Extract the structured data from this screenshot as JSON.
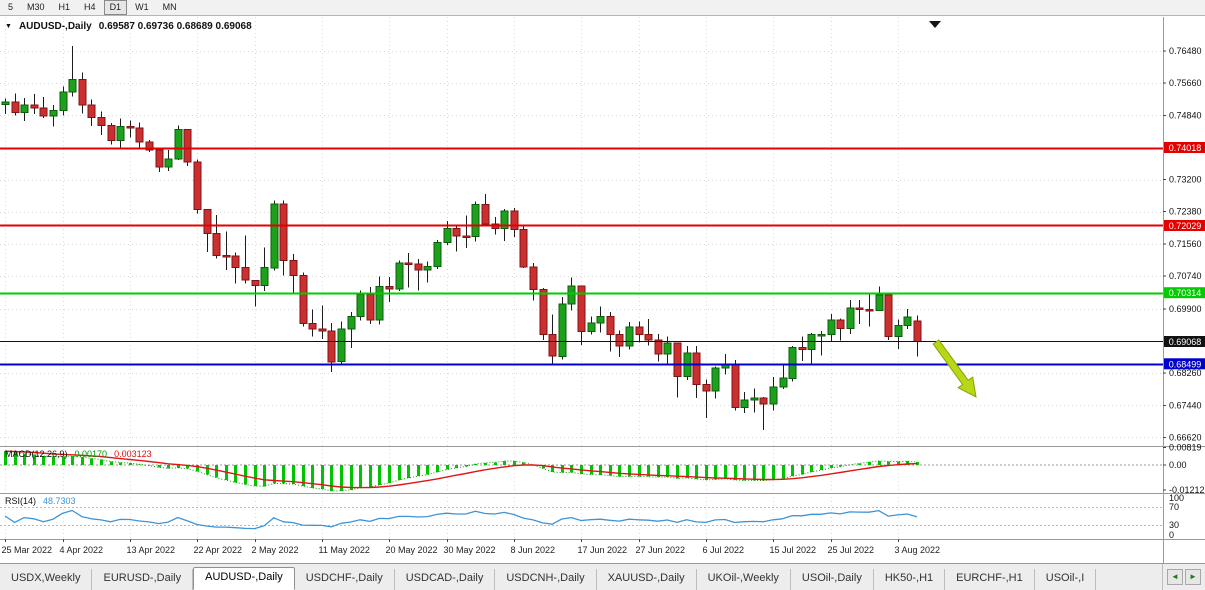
{
  "toolbar": {
    "timeframes": [
      "5",
      "M30",
      "H1",
      "H4",
      "D1",
      "W1",
      "MN"
    ],
    "active": "D1"
  },
  "title": {
    "symbol": "AUDUSD-,Daily",
    "ohlc": "0.69587 0.69736 0.68689 0.69068"
  },
  "chart_data": {
    "type": "candlestick",
    "symbol": "AUDUSD-,Daily",
    "ohlc_current": {
      "open": "0.69587",
      "high": "0.69736",
      "low": "0.68689",
      "close": "0.69068"
    },
    "ylim": [
      0.664,
      0.7735
    ],
    "y_ticks": [
      "0.76480",
      "0.75660",
      "0.74840",
      "0.73200",
      "0.72380",
      "0.71560",
      "0.70740",
      "0.69900",
      "0.68260",
      "0.67440",
      "0.66620"
    ],
    "x_labels": [
      {
        "t": "25 Mar 2022",
        "i": 0
      },
      {
        "t": "4 Apr 2022",
        "i": 6
      },
      {
        "t": "13 Apr 2022",
        "i": 13
      },
      {
        "t": "22 Apr 2022",
        "i": 20
      },
      {
        "t": "2 May 2022",
        "i": 26
      },
      {
        "t": "11 May 2022",
        "i": 33
      },
      {
        "t": "20 May 2022",
        "i": 40
      },
      {
        "t": "30 May 2022",
        "i": 46
      },
      {
        "t": "8 Jun 2022",
        "i": 53
      },
      {
        "t": "17 Jun 2022",
        "i": 60
      },
      {
        "t": "27 Jun 2022",
        "i": 66
      },
      {
        "t": "6 Jul 2022",
        "i": 73
      },
      {
        "t": "15 Jul 2022",
        "i": 80
      },
      {
        "t": "25 Jul 2022",
        "i": 86
      },
      {
        "t": "3 Aug 2022",
        "i": 93
      }
    ],
    "hlines": [
      {
        "price": 0.74018,
        "label": "0.74018",
        "color": "#e30000",
        "width": 2,
        "name": "resistance-line-upper"
      },
      {
        "price": 0.72029,
        "label": "0.72029",
        "color": "#e30000",
        "width": 2,
        "name": "resistance-line-lower"
      },
      {
        "price": 0.70314,
        "label": "0.70314",
        "color": "#00cc00",
        "width": 2,
        "name": "support-line-green"
      },
      {
        "price": 0.69068,
        "label": "0.69068",
        "color": "#111111",
        "width": 1,
        "name": "current-price-line"
      },
      {
        "price": 0.68499,
        "label": "0.68499",
        "color": "#0000cc",
        "width": 2,
        "name": "support-line-blue"
      }
    ],
    "candles": [
      [
        0.7512,
        0.7527,
        0.7487,
        0.7518
      ],
      [
        0.7518,
        0.754,
        0.7483,
        0.7491
      ],
      [
        0.7491,
        0.7528,
        0.747,
        0.751
      ],
      [
        0.751,
        0.7538,
        0.7487,
        0.7503
      ],
      [
        0.7503,
        0.7531,
        0.7477,
        0.7482
      ],
      [
        0.7482,
        0.751,
        0.7455,
        0.7496
      ],
      [
        0.7496,
        0.7557,
        0.7484,
        0.7543
      ],
      [
        0.7543,
        0.7661,
        0.7532,
        0.7575
      ],
      [
        0.7575,
        0.7593,
        0.7489,
        0.751
      ],
      [
        0.751,
        0.7524,
        0.7457,
        0.7478
      ],
      [
        0.7478,
        0.7494,
        0.7434,
        0.7458
      ],
      [
        0.7458,
        0.7464,
        0.7409,
        0.742
      ],
      [
        0.742,
        0.7476,
        0.7399,
        0.7455
      ],
      [
        0.7455,
        0.7471,
        0.7427,
        0.7452
      ],
      [
        0.7452,
        0.7466,
        0.7398,
        0.7416
      ],
      [
        0.7416,
        0.7421,
        0.739,
        0.7395
      ],
      [
        0.7395,
        0.74,
        0.734,
        0.7352
      ],
      [
        0.7352,
        0.7395,
        0.7342,
        0.7373
      ],
      [
        0.7373,
        0.7458,
        0.737,
        0.7448
      ],
      [
        0.7448,
        0.7449,
        0.7355,
        0.7365
      ],
      [
        0.7365,
        0.7371,
        0.7234,
        0.7244
      ],
      [
        0.7244,
        0.7245,
        0.7135,
        0.7182
      ],
      [
        0.7182,
        0.7229,
        0.7119,
        0.7126
      ],
      [
        0.7126,
        0.7187,
        0.7089,
        0.7125
      ],
      [
        0.7125,
        0.7134,
        0.7055,
        0.7096
      ],
      [
        0.7096,
        0.7177,
        0.7055,
        0.7063
      ],
      [
        0.7063,
        0.7064,
        0.6996,
        0.705
      ],
      [
        0.705,
        0.7147,
        0.7035,
        0.7095
      ],
      [
        0.7095,
        0.7267,
        0.7088,
        0.7258
      ],
      [
        0.7258,
        0.7266,
        0.7075,
        0.7113
      ],
      [
        0.7113,
        0.713,
        0.703,
        0.7075
      ],
      [
        0.7075,
        0.7083,
        0.6945,
        0.6953
      ],
      [
        0.6953,
        0.6988,
        0.692,
        0.6939
      ],
      [
        0.6939,
        0.6998,
        0.6913,
        0.6934
      ],
      [
        0.6934,
        0.6954,
        0.6829,
        0.6855
      ],
      [
        0.6855,
        0.6958,
        0.685,
        0.6938
      ],
      [
        0.6938,
        0.6982,
        0.689,
        0.697
      ],
      [
        0.697,
        0.7037,
        0.696,
        0.7027
      ],
      [
        0.7027,
        0.7046,
        0.6952,
        0.6962
      ],
      [
        0.6962,
        0.7073,
        0.695,
        0.7047
      ],
      [
        0.7047,
        0.7072,
        0.7008,
        0.704
      ],
      [
        0.704,
        0.7113,
        0.7035,
        0.7107
      ],
      [
        0.7107,
        0.7133,
        0.7044,
        0.7105
      ],
      [
        0.7105,
        0.7117,
        0.7037,
        0.7089
      ],
      [
        0.7089,
        0.7111,
        0.7057,
        0.7098
      ],
      [
        0.7098,
        0.7166,
        0.7092,
        0.7159
      ],
      [
        0.7159,
        0.7214,
        0.7153,
        0.7195
      ],
      [
        0.7195,
        0.7205,
        0.7136,
        0.7176
      ],
      [
        0.7176,
        0.7228,
        0.7145,
        0.7175
      ],
      [
        0.7175,
        0.7264,
        0.7162,
        0.7257
      ],
      [
        0.7257,
        0.7283,
        0.7202,
        0.7207
      ],
      [
        0.7207,
        0.7225,
        0.718,
        0.7195
      ],
      [
        0.7195,
        0.7245,
        0.7163,
        0.724
      ],
      [
        0.724,
        0.7247,
        0.7174,
        0.7193
      ],
      [
        0.7193,
        0.7204,
        0.7094,
        0.7097
      ],
      [
        0.7097,
        0.7107,
        0.7012,
        0.704
      ],
      [
        0.704,
        0.7043,
        0.6911,
        0.6925
      ],
      [
        0.6925,
        0.6976,
        0.685,
        0.6869
      ],
      [
        0.6869,
        0.702,
        0.6861,
        0.7003
      ],
      [
        0.7003,
        0.707,
        0.6986,
        0.7048
      ],
      [
        0.7048,
        0.705,
        0.6898,
        0.6932
      ],
      [
        0.6932,
        0.6971,
        0.6925,
        0.6954
      ],
      [
        0.6954,
        0.6996,
        0.693,
        0.697
      ],
      [
        0.697,
        0.6982,
        0.6881,
        0.6925
      ],
      [
        0.6925,
        0.6935,
        0.6867,
        0.6895
      ],
      [
        0.6895,
        0.6957,
        0.6886,
        0.6944
      ],
      [
        0.6944,
        0.6958,
        0.6904,
        0.6925
      ],
      [
        0.6925,
        0.6964,
        0.6896,
        0.6911
      ],
      [
        0.6911,
        0.6926,
        0.6856,
        0.6875
      ],
      [
        0.6875,
        0.6919,
        0.685,
        0.6903
      ],
      [
        0.6903,
        0.6904,
        0.6764,
        0.6817
      ],
      [
        0.6817,
        0.6895,
        0.6808,
        0.6878
      ],
      [
        0.6878,
        0.6895,
        0.6762,
        0.6797
      ],
      [
        0.6797,
        0.681,
        0.6712,
        0.678
      ],
      [
        0.678,
        0.6843,
        0.6761,
        0.6839
      ],
      [
        0.6839,
        0.6875,
        0.6822,
        0.6849
      ],
      [
        0.6849,
        0.686,
        0.6731,
        0.6738
      ],
      [
        0.6738,
        0.6778,
        0.6724,
        0.6757
      ],
      [
        0.6757,
        0.6787,
        0.6726,
        0.6763
      ],
      [
        0.6763,
        0.6765,
        0.6681,
        0.6747
      ],
      [
        0.6747,
        0.6816,
        0.673,
        0.6791
      ],
      [
        0.6791,
        0.685,
        0.6786,
        0.6813
      ],
      [
        0.6813,
        0.6895,
        0.6805,
        0.6891
      ],
      [
        0.6891,
        0.692,
        0.6857,
        0.6886
      ],
      [
        0.6886,
        0.6929,
        0.6847,
        0.6924
      ],
      [
        0.6924,
        0.6933,
        0.6871,
        0.6925
      ],
      [
        0.6925,
        0.6977,
        0.6906,
        0.6961
      ],
      [
        0.6961,
        0.6965,
        0.6909,
        0.694
      ],
      [
        0.694,
        0.7013,
        0.6926,
        0.6992
      ],
      [
        0.6992,
        0.7013,
        0.6952,
        0.6989
      ],
      [
        0.6989,
        0.7032,
        0.6945,
        0.6986
      ],
      [
        0.6986,
        0.7047,
        0.6984,
        0.7025
      ],
      [
        0.7025,
        0.7032,
        0.6911,
        0.692
      ],
      [
        0.692,
        0.6963,
        0.6887,
        0.6948
      ],
      [
        0.6948,
        0.699,
        0.6939,
        0.6969
      ],
      [
        0.69587,
        0.69736,
        0.68689,
        0.69068
      ]
    ],
    "indicators": {
      "macd": {
        "name": "MACD(12,26,9)",
        "value_main": "0.00170",
        "value_signal": "0.003123",
        "axis_labels": [
          "0.00819",
          "0.00",
          "-0.01212"
        ],
        "ylim": [
          -0.0135,
          0.009
        ],
        "params": [
          12,
          26,
          9
        ]
      },
      "rsi": {
        "name": "RSI(14)",
        "value": "48.7303",
        "axis_labels": [
          "100",
          "70",
          "30",
          "0"
        ],
        "levels": [
          70,
          30
        ],
        "period": 14
      }
    },
    "annotation_arrow": {
      "color": "#b9d714",
      "outline": "#86a309"
    }
  },
  "tabs": {
    "items": [
      "USDX,Weekly",
      "EURUSD-,Daily",
      "AUDUSD-,Daily",
      "USDCHF-,Daily",
      "USDCAD-,Daily",
      "USDCNH-,Daily",
      "XAUUSD-,Daily",
      "UKOil-,Weekly",
      "USOil-,Daily",
      "HK50-,H1",
      "EURCHF-,H1",
      "USOil-,I"
    ],
    "active_index": 2,
    "scroll_left_icon": "◄",
    "scroll_right_icon": "►"
  },
  "colors": {
    "up": "#1da11d",
    "up_border": "#0b5e0b",
    "down": "#cc2f2f",
    "down_border": "#801414",
    "grid": "#dadada",
    "axis_text": "#111111",
    "macd_hist": "#00c400",
    "macd_dotted": "#00a000",
    "macd_signal": "#e01616",
    "rsi_line": "#3e95d6"
  }
}
